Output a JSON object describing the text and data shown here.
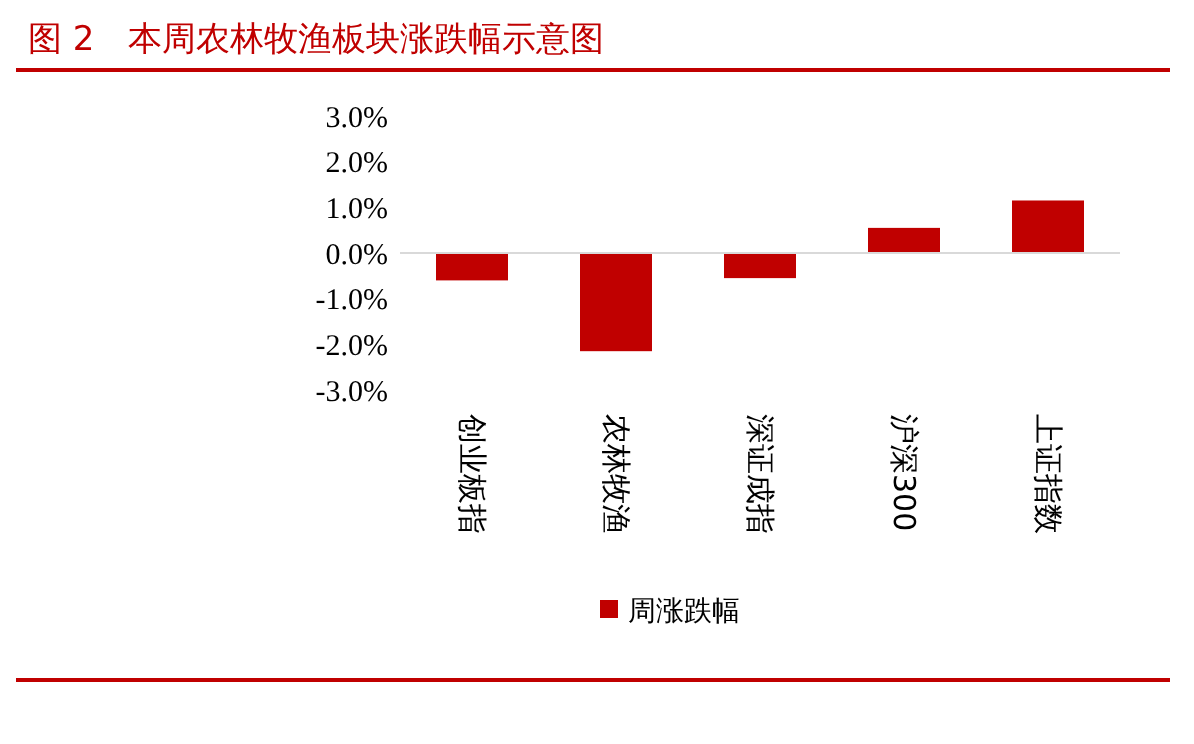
{
  "chart_data": {
    "type": "bar",
    "title": "图 2　本周农林牧渔板块涨跌幅示意图",
    "categories": [
      "创业板指",
      "农林牧渔",
      "深证成指",
      "沪深300",
      "上证指数"
    ],
    "series": [
      {
        "name": "周涨跌幅",
        "color": "#c00000",
        "values": [
          -0.6,
          -2.15,
          -0.55,
          0.55,
          1.15
        ]
      }
    ],
    "ylim": [
      -3,
      3
    ],
    "yticks": [
      {
        "value": -3,
        "label": "-3.0%"
      },
      {
        "value": -2,
        "label": "-2.0%"
      },
      {
        "value": -1,
        "label": "-1.0%"
      },
      {
        "value": 0,
        "label": "0.0%"
      },
      {
        "value": 1,
        "label": "1.0%"
      },
      {
        "value": 2,
        "label": "2.0%"
      },
      {
        "value": 3,
        "label": "3.0%"
      }
    ],
    "legend": "bottom"
  }
}
